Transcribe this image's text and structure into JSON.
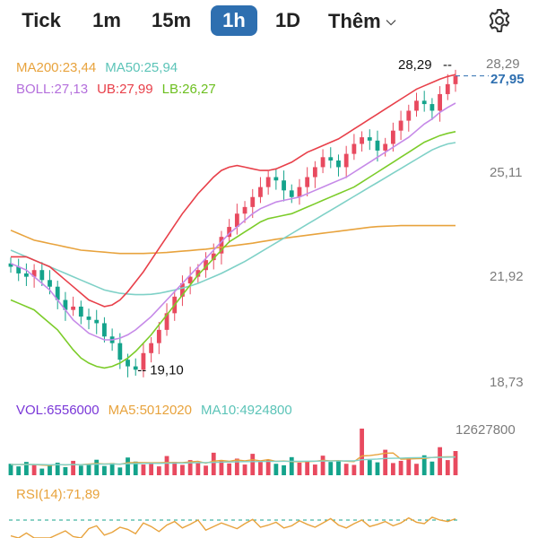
{
  "toolbar": {
    "tabs": [
      {
        "label": "Tick"
      },
      {
        "label": "1m"
      },
      {
        "label": "15m"
      },
      {
        "label": "1h",
        "active": true
      },
      {
        "label": "1D"
      }
    ],
    "more_label": "Thêm",
    "icons": {
      "more": "chevron-down-icon",
      "settings": "gear-icon"
    }
  },
  "legend_main": {
    "ma200": "MA200:23,44",
    "ma50": "MA50:25,94",
    "boll": "BOLL:27,13",
    "ub": "UB:27,99",
    "lb": "LB:26,27"
  },
  "legend_vol": {
    "vol": "VOL:6556000",
    "ma5": "MA5:5012020",
    "ma10": "MA10:4924800"
  },
  "legend_rsi": {
    "rsi": "RSI(14):71,89"
  },
  "colors": {
    "up": "#e84a5f",
    "down": "#14a38b",
    "ma200": "#e8a33d",
    "ma50": "#7fd1c7",
    "boll": "#c68ae8",
    "ub": "#e8404a",
    "lb": "#7ccc2a",
    "vol": "#7a37d8",
    "accent": "#2e6fb0"
  },
  "chart_data": [
    {
      "type": "candlestick",
      "y_ticks": [
        "28,29",
        "25,11",
        "21,92",
        "18,73"
      ],
      "ylim": [
        18.73,
        28.29
      ],
      "current_price": "27,95",
      "max_label": "28,29",
      "min_label": "19,10",
      "series": {
        "close": [
          22.2,
          22.0,
          21.9,
          22.1,
          21.8,
          21.6,
          21.2,
          20.9,
          21.0,
          20.7,
          20.6,
          20.5,
          20.1,
          19.9,
          19.4,
          19.2,
          19.1,
          19.6,
          19.9,
          20.3,
          20.8,
          21.3,
          21.7,
          21.9,
          22.1,
          22.4,
          22.6,
          23.1,
          23.4,
          23.8,
          24.0,
          24.3,
          24.6,
          24.9,
          24.8,
          24.5,
          24.3,
          24.6,
          24.9,
          25.2,
          25.5,
          25.4,
          25.2,
          25.6,
          25.9,
          26.1,
          26.0,
          25.7,
          25.9,
          26.3,
          26.6,
          26.9,
          27.2,
          27.1,
          26.9,
          27.4,
          27.7,
          27.95
        ],
        "ma200": [
          23.3,
          23.2,
          23.1,
          23.0,
          22.95,
          22.9,
          22.85,
          22.8,
          22.75,
          22.7,
          22.68,
          22.66,
          22.64,
          22.62,
          22.6,
          22.6,
          22.6,
          22.6,
          22.61,
          22.62,
          22.63,
          22.65,
          22.67,
          22.69,
          22.71,
          22.73,
          22.76,
          22.79,
          22.82,
          22.85,
          22.88,
          22.91,
          22.95,
          22.99,
          23.03,
          23.06,
          23.09,
          23.12,
          23.15,
          23.18,
          23.21,
          23.24,
          23.27,
          23.3,
          23.33,
          23.36,
          23.39,
          23.41,
          23.42,
          23.43,
          23.44,
          23.44,
          23.44,
          23.44,
          23.44,
          23.44,
          23.44,
          23.44
        ],
        "ma50": [
          22.7,
          22.6,
          22.5,
          22.4,
          22.3,
          22.2,
          22.1,
          22.0,
          21.9,
          21.8,
          21.7,
          21.6,
          21.5,
          21.45,
          21.4,
          21.38,
          21.36,
          21.36,
          21.37,
          21.4,
          21.45,
          21.5,
          21.56,
          21.62,
          21.7,
          21.8,
          21.9,
          22.0,
          22.12,
          22.24,
          22.36,
          22.5,
          22.64,
          22.78,
          22.92,
          23.06,
          23.2,
          23.34,
          23.48,
          23.62,
          23.76,
          23.9,
          24.04,
          24.18,
          24.32,
          24.46,
          24.6,
          24.74,
          24.88,
          25.02,
          25.16,
          25.3,
          25.44,
          25.58,
          25.72,
          25.82,
          25.9,
          25.94
        ],
        "boll": [
          22.3,
          22.2,
          22.1,
          21.9,
          21.7,
          21.5,
          21.2,
          20.9,
          20.6,
          20.4,
          20.2,
          20.1,
          20.0,
          20.0,
          20.05,
          20.15,
          20.3,
          20.5,
          20.7,
          20.95,
          21.2,
          21.45,
          21.7,
          21.95,
          22.2,
          22.45,
          22.7,
          22.95,
          23.2,
          23.4,
          23.6,
          23.8,
          23.95,
          24.05,
          24.15,
          24.2,
          24.25,
          24.3,
          24.4,
          24.5,
          24.6,
          24.7,
          24.8,
          24.9,
          25.05,
          25.2,
          25.35,
          25.5,
          25.65,
          25.8,
          25.95,
          26.1,
          26.3,
          26.5,
          26.65,
          26.85,
          27.0,
          27.13
        ],
        "ub": [
          22.5,
          22.5,
          22.5,
          22.4,
          22.3,
          22.2,
          22.0,
          21.8,
          21.6,
          21.4,
          21.2,
          21.1,
          21.0,
          21.05,
          21.2,
          21.45,
          21.75,
          22.05,
          22.4,
          22.75,
          23.1,
          23.45,
          23.8,
          24.1,
          24.4,
          24.65,
          24.9,
          25.1,
          25.2,
          25.25,
          25.2,
          25.15,
          25.1,
          25.1,
          25.15,
          25.25,
          25.35,
          25.5,
          25.65,
          25.75,
          25.85,
          25.95,
          26.05,
          26.2,
          26.35,
          26.5,
          26.65,
          26.8,
          26.95,
          27.1,
          27.25,
          27.4,
          27.55,
          27.65,
          27.75,
          27.85,
          27.93,
          27.99
        ],
        "lb": [
          21.2,
          21.1,
          21.0,
          20.9,
          20.7,
          20.5,
          20.3,
          20.0,
          19.7,
          19.45,
          19.3,
          19.2,
          19.15,
          19.2,
          19.3,
          19.45,
          19.65,
          19.9,
          20.15,
          20.45,
          20.75,
          21.05,
          21.35,
          21.65,
          21.95,
          22.2,
          22.45,
          22.7,
          22.95,
          23.1,
          23.25,
          23.4,
          23.55,
          23.65,
          23.7,
          23.75,
          23.8,
          23.9,
          24.0,
          24.1,
          24.2,
          24.3,
          24.4,
          24.5,
          24.6,
          24.75,
          24.9,
          25.05,
          25.2,
          25.35,
          25.5,
          25.65,
          25.8,
          25.95,
          26.05,
          26.15,
          26.22,
          26.27
        ]
      }
    },
    {
      "type": "bar",
      "y_tick": "12627800",
      "ymax": 12627800,
      "values": [
        3100000,
        2400000,
        3600000,
        2900000,
        1800000,
        2700000,
        3400000,
        2200000,
        3900000,
        2600000,
        3000000,
        4200000,
        2500000,
        3300000,
        2100000,
        4800000,
        3700000,
        2900000,
        3100000,
        2400000,
        5200000,
        3600000,
        2800000,
        4100000,
        3300000,
        2600000,
        6100000,
        3900000,
        3200000,
        4500000,
        2900000,
        5800000,
        3600000,
        4200000,
        3100000,
        2700000,
        4900000,
        3400000,
        3800000,
        2900000,
        5300000,
        3600000,
        4000000,
        3100000,
        2800000,
        12627800,
        4100000,
        3500000,
        6900000,
        3300000,
        3900000,
        4600000,
        3100000,
        5400000,
        3700000,
        7600000,
        4100000,
        6556000
      ],
      "ma5": [
        2900000,
        2900000,
        2950000,
        2900000,
        2750000,
        2680000,
        2880000,
        2800000,
        2900000,
        2860000,
        3020000,
        3180000,
        3040000,
        3120000,
        2960000,
        3380000,
        3460000,
        3420000,
        3380000,
        3380000,
        3460000,
        3460000,
        3420000,
        3620000,
        3800000,
        3280000,
        3820000,
        4000000,
        3780000,
        4120000,
        3880000,
        4200000,
        3900000,
        4220000,
        3760000,
        3860000,
        3700000,
        3660000,
        3680000,
        3780000,
        4060000,
        3920000,
        3960000,
        3780000,
        3680000,
        5220000,
        5320000,
        5600000,
        5980000,
        6020000,
        4360000,
        4400000,
        4500000,
        4540000,
        4800000,
        4920000,
        4980000,
        5012020
      ],
      "ma10": [
        2900000,
        2900000,
        2920000,
        2930000,
        2900000,
        2850000,
        2870000,
        2850000,
        2880000,
        2870000,
        2890000,
        2980000,
        3000000,
        3010000,
        3000000,
        3120000,
        3160000,
        3200000,
        3220000,
        3200000,
        3250000,
        3280000,
        3300000,
        3350000,
        3400000,
        3420000,
        3480000,
        3550000,
        3600000,
        3650000,
        3680000,
        3700000,
        3720000,
        3750000,
        3760000,
        3780000,
        3790000,
        3800000,
        3810000,
        3820000,
        3840000,
        3850000,
        3870000,
        3880000,
        3890000,
        4200000,
        4300000,
        4400000,
        4550000,
        4600000,
        4650000,
        4700000,
        4750000,
        4780000,
        4820000,
        4860000,
        4890000,
        4924800
      ]
    },
    {
      "type": "line",
      "values": [
        48,
        45,
        52,
        44,
        40,
        43,
        50,
        55,
        47,
        42,
        58,
        62,
        49,
        53,
        60,
        57,
        51,
        66,
        61,
        54,
        63,
        68,
        59,
        64,
        70,
        56,
        61,
        66,
        62,
        58,
        65,
        71,
        60,
        63,
        67,
        59,
        62,
        69,
        64,
        60,
        66,
        72,
        63,
        59,
        65,
        70,
        61,
        64,
        68,
        62,
        66,
        73,
        67,
        65,
        74,
        70,
        68,
        71.89
      ],
      "guide_level": 70
    }
  ]
}
